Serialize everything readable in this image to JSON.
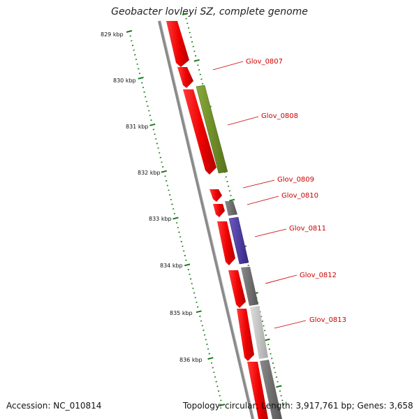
{
  "title": "Geobacter lovleyi SZ, complete genome",
  "footer": {
    "accession": "Accession: NC_010814",
    "summary": "Topology: circular; Length: 3,917,761 bp; Genes: 3,658"
  },
  "ruler": {
    "tick_color": "#1a7a1a",
    "labels": [
      "829 kbp",
      "830 kbp",
      "831 kbp",
      "832 kbp",
      "833 kbp",
      "834 kbp",
      "835 kbp",
      "836 kbp"
    ]
  },
  "backbone_color": "#808080",
  "gene_labels": [
    "Glov_0807",
    "Glov_0808",
    "Glov_0809",
    "Glov_0810",
    "Glov_0811",
    "Glov_0812",
    "Glov_0813"
  ],
  "colors": {
    "red": "#ee0000",
    "olive": "#6b8e23",
    "gray": "#6e6e6e",
    "lightgray": "#c4c4c4",
    "blue": "#4b3aa0",
    "label": "#cc0000"
  }
}
